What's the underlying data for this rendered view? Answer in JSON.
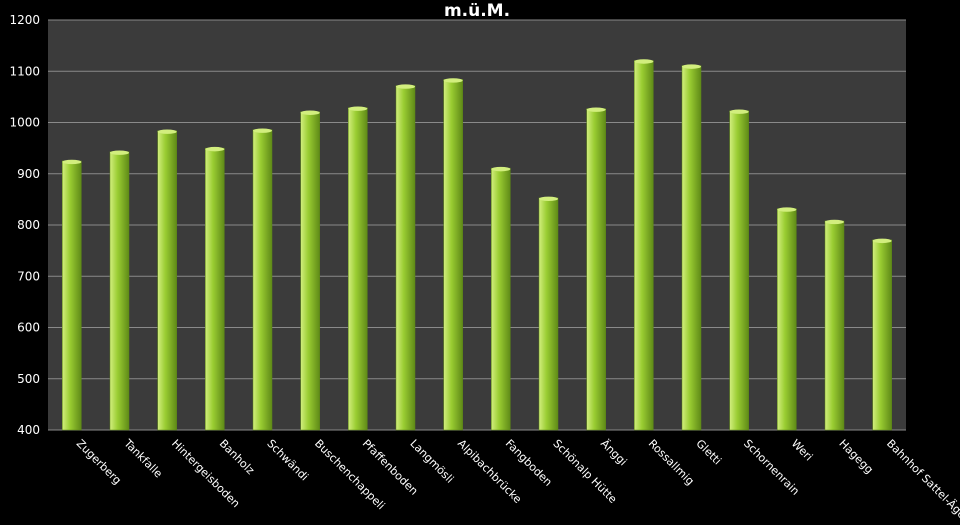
{
  "chart_data": {
    "type": "bar",
    "title": "m.ü.M.",
    "xlabel": "",
    "ylabel": "",
    "ylim": [
      400,
      1200
    ],
    "yticks": [
      400,
      500,
      600,
      700,
      800,
      900,
      1000,
      1100,
      1200
    ],
    "grid": true,
    "legend": "none",
    "categories": [
      "Zugerberg",
      "Tankfalle",
      "Hintergeisboden",
      "Banholz",
      "Schwändi",
      "Buschenchappeli",
      "Pfaffenboden",
      "Langmösli",
      "Alpibachbrücke",
      "Fangboden",
      "Schönalp Hütte",
      "Änggi",
      "Rossallmig",
      "Gletti",
      "Schornenrain",
      "Weri",
      "Hagegg",
      "Bahnhof Sattel-Ägeri"
    ],
    "values": [
      925,
      943,
      984,
      950,
      986,
      1021,
      1029,
      1072,
      1084,
      911,
      853,
      1027,
      1121,
      1111,
      1023,
      832,
      808,
      771
    ],
    "colors": {
      "background": "#000000",
      "plot_area": "#3b3b3b",
      "grid": "#8a8a8a",
      "bar": "#9acd32",
      "bar_light": "#d2ee7e",
      "bar_dark": "#5f8a17",
      "text": "#ffffff"
    }
  }
}
